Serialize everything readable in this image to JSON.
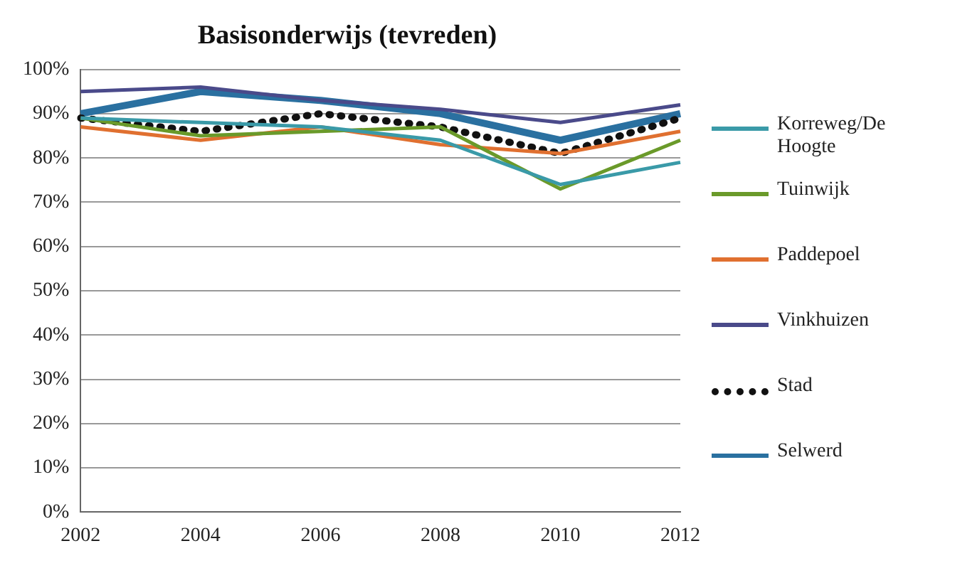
{
  "chart_data": {
    "type": "line",
    "title": "Basisonderwijs (tevreden)",
    "categories": [
      "2002",
      "2004",
      "2006",
      "2008",
      "2010",
      "2012"
    ],
    "series": [
      {
        "name": "Korreweg/De Hoogte",
        "color": "#3a9aa8",
        "values": [
          89,
          88,
          87,
          84,
          74,
          79
        ]
      },
      {
        "name": "Tuinwijk",
        "color": "#6a9a2a",
        "values": [
          89,
          85,
          86,
          87,
          73,
          84
        ]
      },
      {
        "name": "Paddepoel",
        "color": "#e07030",
        "values": [
          87,
          84,
          87,
          83,
          81,
          86
        ]
      },
      {
        "name": "Vinkhuizen",
        "color": "#4a4a8a",
        "values": [
          95,
          96,
          93,
          91,
          88,
          92
        ]
      },
      {
        "name": "Stad",
        "color": "#111111",
        "values": [
          89,
          86,
          90,
          87,
          81,
          89
        ],
        "line_style": "dotted"
      },
      {
        "name": "Selwerd",
        "color": "#2a70a0",
        "values": [
          90,
          95,
          93,
          90,
          84,
          90
        ]
      }
    ],
    "ylim": [
      0,
      100
    ],
    "yticks": [
      {
        "value": 0,
        "label": "0%"
      },
      {
        "value": 10,
        "label": "10%"
      },
      {
        "value": 20,
        "label": "20%"
      },
      {
        "value": 30,
        "label": "30%"
      },
      {
        "value": 40,
        "label": "40%"
      },
      {
        "value": 50,
        "label": "50%"
      },
      {
        "value": 60,
        "label": "60%"
      },
      {
        "value": 70,
        "label": "70%"
      },
      {
        "value": 80,
        "label": "80%"
      },
      {
        "value": 90,
        "label": "90%"
      },
      {
        "value": 100,
        "label": "100%"
      }
    ],
    "grid": "y",
    "legend": "right"
  }
}
